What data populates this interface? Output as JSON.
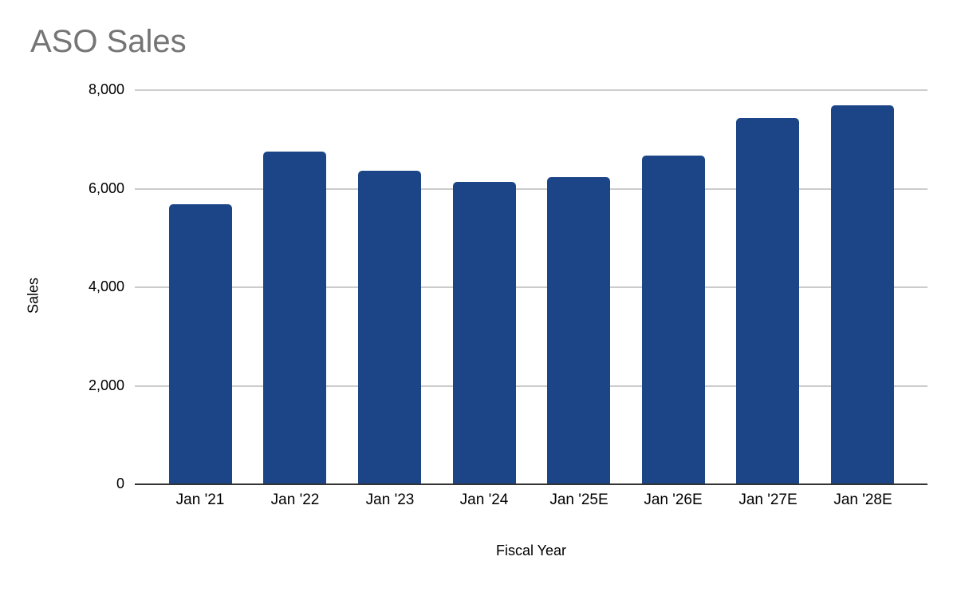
{
  "colors": {
    "bar": "#1c4587",
    "title_text": "#757575",
    "axis_text": "#000000",
    "gridline": "#cccccc",
    "baseline": "#333333",
    "background": "#ffffff"
  },
  "chart_data": {
    "type": "bar",
    "title": "ASO Sales",
    "xlabel": "Fiscal Year",
    "ylabel": "Sales",
    "categories": [
      "Jan '21",
      "Jan '22",
      "Jan '23",
      "Jan '24",
      "Jan '25E",
      "Jan '26E",
      "Jan '27E",
      "Jan '28E"
    ],
    "values": [
      5690,
      6760,
      6370,
      6130,
      6240,
      6680,
      7440,
      7690
    ],
    "ylim": [
      0,
      8000
    ],
    "yticks": [
      0,
      2000,
      4000,
      6000,
      8000
    ],
    "ytick_labels": [
      "0",
      "2,000",
      "4,000",
      "6,000",
      "8,000"
    ],
    "grid": true,
    "legend_position": "none"
  }
}
